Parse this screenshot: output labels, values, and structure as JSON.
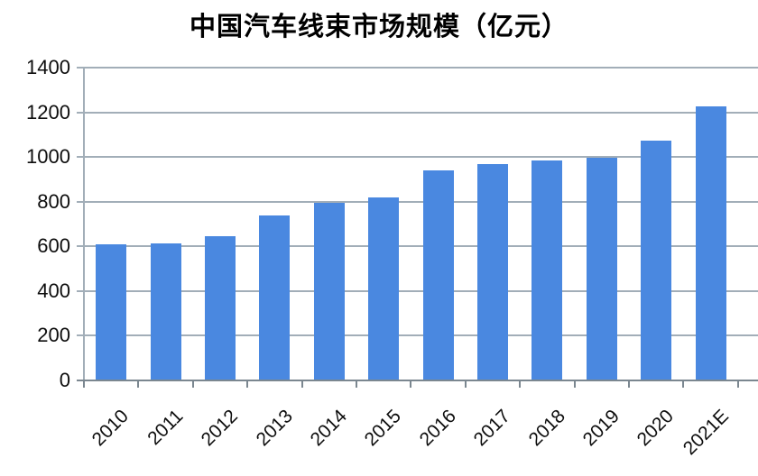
{
  "chart_data": {
    "type": "bar",
    "title": "中国汽车线束市场规模（亿元）",
    "categories": [
      "2010",
      "2011",
      "2012",
      "2013",
      "2014",
      "2015",
      "2016",
      "2017",
      "2018",
      "2019",
      "2020",
      "2021E"
    ],
    "values": [
      610,
      613,
      645,
      740,
      795,
      820,
      940,
      970,
      985,
      995,
      1072,
      1228
    ],
    "xlabel": "",
    "ylabel": "",
    "ylim": [
      0,
      1400
    ],
    "yticks": [
      0,
      200,
      400,
      600,
      800,
      1000,
      1200,
      1400
    ],
    "grid": true,
    "legend_position": "none",
    "bar_color": "#4a88e0",
    "gridline_color": "#a2aeb8",
    "axis_color": "#7b8790",
    "text_color": "#0d0d0d"
  }
}
